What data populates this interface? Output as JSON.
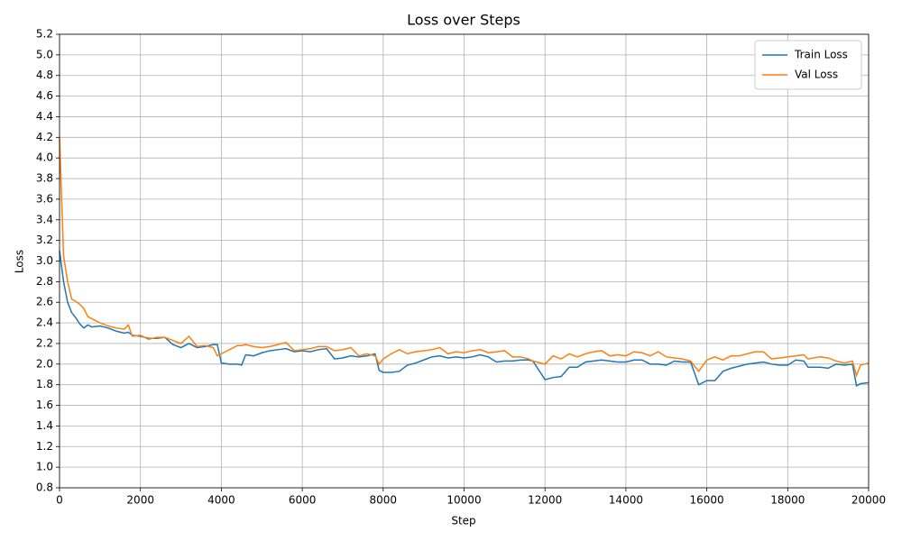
{
  "chart_data": {
    "type": "line",
    "title": "Loss over Steps",
    "x_label": "Step",
    "y_label": "Loss",
    "x": [
      0,
      100,
      200,
      300,
      400,
      500,
      600,
      700,
      800,
      1000,
      1200,
      1400,
      1600,
      1700,
      1800,
      2000,
      2200,
      2400,
      2600,
      2800,
      3000,
      3200,
      3400,
      3600,
      3800,
      3900,
      4000,
      4200,
      4400,
      4500,
      4600,
      4800,
      5000,
      5200,
      5400,
      5600,
      5800,
      6000,
      6200,
      6400,
      6600,
      6800,
      7000,
      7200,
      7400,
      7600,
      7800,
      7900,
      8000,
      8200,
      8400,
      8600,
      8800,
      9000,
      9200,
      9400,
      9600,
      9800,
      10000,
      10200,
      10400,
      10600,
      10800,
      11000,
      11200,
      11400,
      11600,
      11700,
      12000,
      12200,
      12400,
      12600,
      12800,
      13000,
      13200,
      13400,
      13600,
      13800,
      14000,
      14200,
      14400,
      14600,
      14800,
      15000,
      15200,
      15400,
      15600,
      15800,
      16000,
      16200,
      16400,
      16600,
      16800,
      17000,
      17200,
      17400,
      17600,
      17800,
      18000,
      18200,
      18400,
      18500,
      18800,
      19000,
      19200,
      19400,
      19600,
      19700,
      19800,
      20000
    ],
    "series": [
      {
        "name": "Train Loss",
        "color": "#1f77b4",
        "values": [
          3.1,
          2.8,
          2.6,
          2.5,
          2.45,
          2.39,
          2.35,
          2.38,
          2.36,
          2.37,
          2.35,
          2.32,
          2.3,
          2.31,
          2.28,
          2.27,
          2.25,
          2.25,
          2.26,
          2.19,
          2.16,
          2.2,
          2.16,
          2.17,
          2.19,
          2.19,
          2.01,
          2.0,
          2.0,
          1.99,
          2.09,
          2.08,
          2.11,
          2.13,
          2.14,
          2.15,
          2.12,
          2.13,
          2.12,
          2.14,
          2.15,
          2.05,
          2.06,
          2.08,
          2.07,
          2.08,
          2.1,
          1.94,
          1.92,
          1.92,
          1.93,
          1.99,
          2.01,
          2.04,
          2.07,
          2.08,
          2.06,
          2.07,
          2.06,
          2.07,
          2.09,
          2.07,
          2.02,
          2.03,
          2.03,
          2.04,
          2.04,
          2.03,
          1.85,
          1.87,
          1.88,
          1.97,
          1.97,
          2.02,
          2.03,
          2.04,
          2.03,
          2.02,
          2.02,
          2.04,
          2.04,
          2.0,
          2.0,
          1.99,
          2.03,
          2.02,
          2.02,
          1.8,
          1.84,
          1.84,
          1.93,
          1.96,
          1.98,
          2.0,
          2.01,
          2.02,
          2.0,
          1.99,
          1.99,
          2.04,
          2.03,
          1.97,
          1.97,
          1.96,
          2.0,
          1.99,
          2.0,
          1.79,
          1.81,
          1.82
        ]
      },
      {
        "name": "Val Loss",
        "color": "#ff7f0e",
        "values": [
          4.2,
          3.05,
          2.8,
          2.63,
          2.61,
          2.58,
          2.54,
          2.46,
          2.44,
          2.4,
          2.37,
          2.35,
          2.34,
          2.38,
          2.27,
          2.28,
          2.24,
          2.26,
          2.26,
          2.23,
          2.2,
          2.27,
          2.17,
          2.18,
          2.16,
          2.08,
          2.1,
          2.14,
          2.18,
          2.18,
          2.19,
          2.17,
          2.16,
          2.17,
          2.19,
          2.21,
          2.13,
          2.14,
          2.15,
          2.17,
          2.17,
          2.13,
          2.14,
          2.16,
          2.08,
          2.1,
          2.08,
          2.0,
          2.05,
          2.1,
          2.14,
          2.1,
          2.12,
          2.13,
          2.14,
          2.16,
          2.1,
          2.12,
          2.11,
          2.13,
          2.14,
          2.11,
          2.12,
          2.13,
          2.07,
          2.07,
          2.05,
          2.03,
          2.0,
          2.08,
          2.05,
          2.1,
          2.07,
          2.1,
          2.12,
          2.13,
          2.08,
          2.09,
          2.08,
          2.12,
          2.11,
          2.08,
          2.12,
          2.07,
          2.06,
          2.05,
          2.03,
          1.93,
          2.04,
          2.07,
          2.04,
          2.08,
          2.08,
          2.1,
          2.12,
          2.12,
          2.05,
          2.06,
          2.07,
          2.08,
          2.09,
          2.05,
          2.07,
          2.06,
          2.03,
          2.01,
          2.03,
          1.89,
          1.99,
          2.01
        ]
      }
    ],
    "xlim": [
      0,
      20000
    ],
    "xticks": [
      0,
      2000,
      4000,
      6000,
      8000,
      10000,
      12000,
      14000,
      16000,
      18000,
      20000
    ],
    "ylim": [
      0.8,
      5.2
    ],
    "yticks": [
      0.8,
      {
        "value": 1.0,
        "label": "1.0"
      },
      1.2,
      1.4,
      1.6,
      1.8,
      {
        "value": 2.0,
        "label": "2.0"
      },
      2.2,
      2.4,
      2.6,
      2.8,
      {
        "value": 3.0,
        "label": "3.0"
      },
      3.2,
      3.4,
      3.6,
      3.8,
      {
        "value": 4.0,
        "label": "4.0"
      },
      4.2,
      4.4,
      4.6,
      4.8,
      {
        "value": 5.0,
        "label": "5.0"
      },
      5.2
    ],
    "grid": true,
    "legend": "upper-right"
  }
}
